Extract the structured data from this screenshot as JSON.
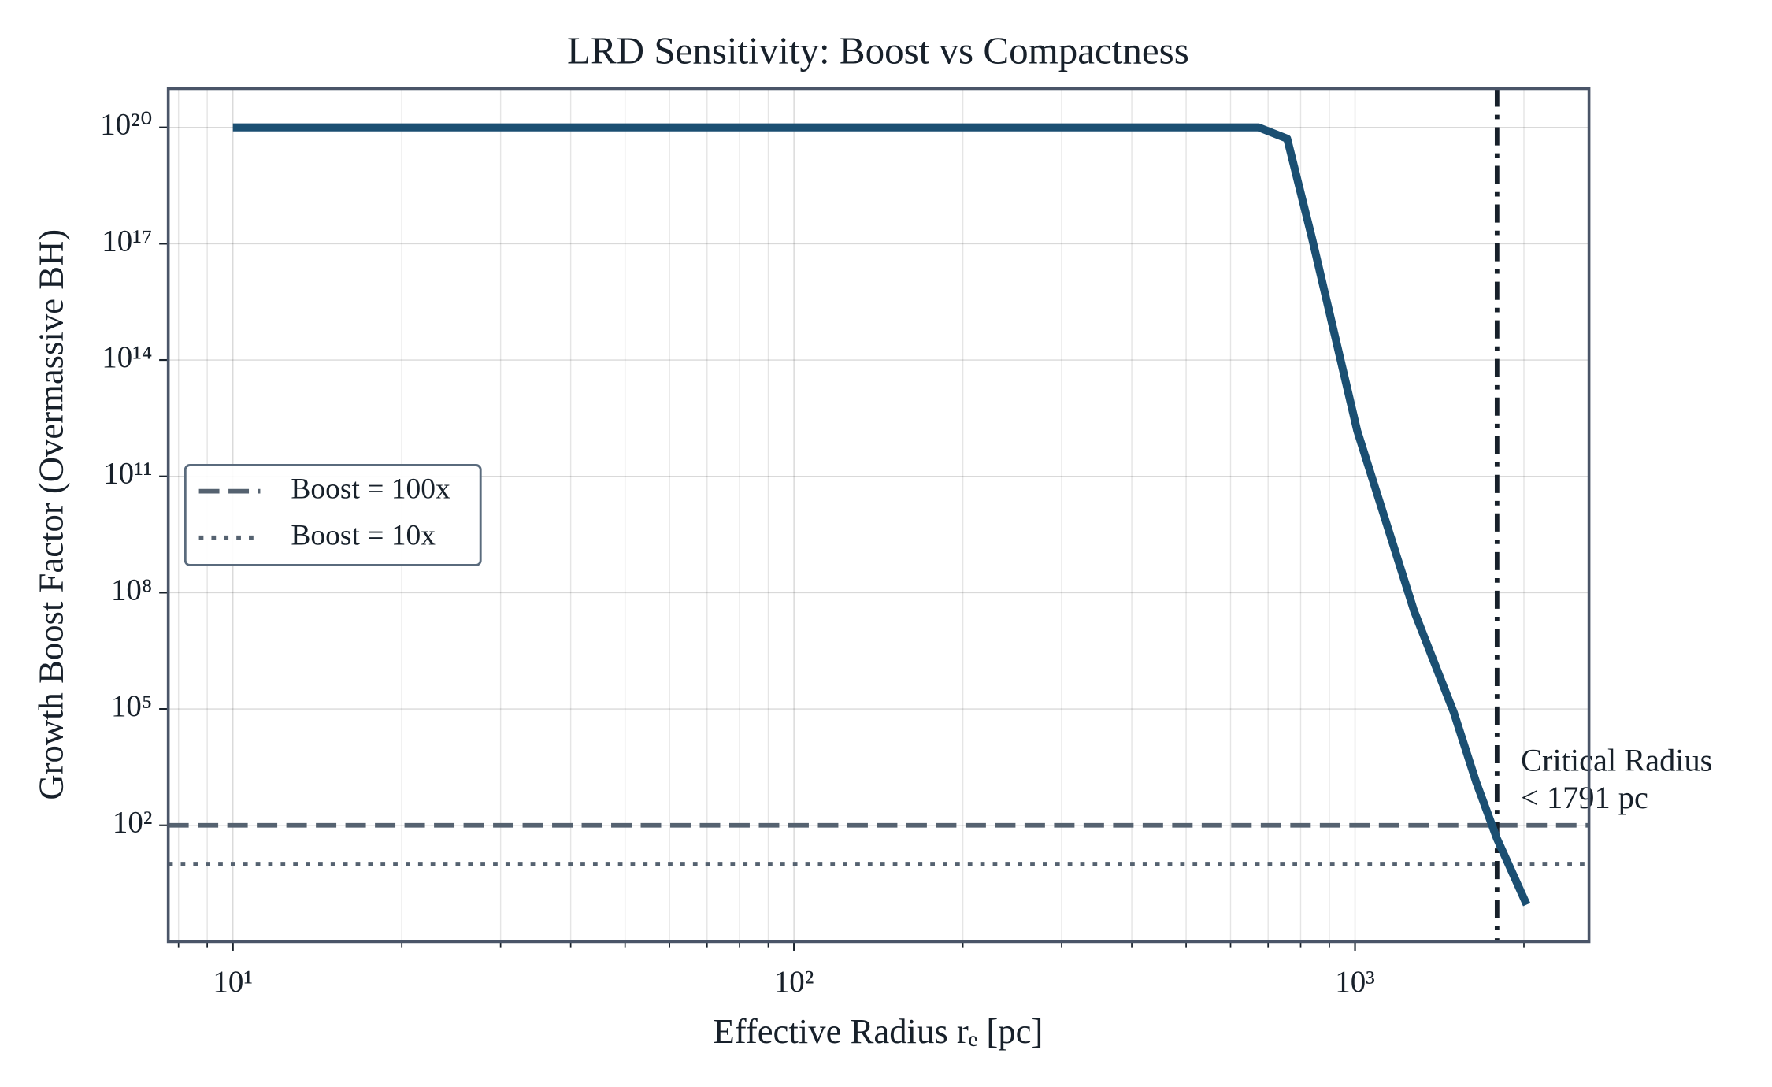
{
  "chart_data": {
    "type": "line",
    "title": "LRD Sensitivity: Boost vs Compactness",
    "xlabel": "Effective Radius rₑ [pc]",
    "ylabel": "Growth Boost Factor (Overmassive BH)",
    "xscale": "log",
    "yscale": "log",
    "grid": true,
    "xlim": [
      7.67,
      2612
    ],
    "ylim": [
      0.1,
      1e+21
    ],
    "xticks": [
      {
        "value": 10,
        "label": "10¹"
      },
      {
        "value": 100,
        "label": "10²"
      },
      {
        "value": 1000,
        "label": "10³"
      }
    ],
    "xminorticks": [
      8,
      9,
      20,
      30,
      40,
      50,
      60,
      70,
      80,
      90,
      200,
      300,
      400,
      500,
      600,
      700,
      800,
      900,
      2000
    ],
    "yticks": [
      {
        "value": 100,
        "label": "10²"
      },
      {
        "value": 100000,
        "label": "10⁵"
      },
      {
        "value": 100000000,
        "label": "10⁸"
      },
      {
        "value": 100000000000,
        "label": "10¹¹"
      },
      {
        "value": 100000000000000,
        "label": "10¹⁴"
      },
      {
        "value": 1e+17,
        "label": "10¹⁷"
      },
      {
        "value": 1e+20,
        "label": "10²⁰"
      }
    ],
    "series": [
      {
        "color": "#1b4f72",
        "x": [
          10,
          673,
          757,
          838,
          1009,
          1274,
          1500,
          1644,
          1791,
          2023
        ],
        "values": [
          1e+20,
          1e+20,
          5.1e+19,
          1.4e+17,
          1500000000000.0,
          34000000.0,
          81000,
          1300,
          45,
          0.9
        ]
      }
    ],
    "hlines": [
      {
        "name": "Boost = 100x",
        "value": 100,
        "color": "#556270",
        "style": "dashed"
      },
      {
        "name": "Boost = 10x",
        "value": 10,
        "color": "#556270",
        "style": "dotted"
      }
    ],
    "vline": {
      "value": 1791,
      "color": "#17202a",
      "style": "dashdot"
    },
    "annotation": {
      "lines": [
        "Critical Radius",
        "< 1791 pc"
      ]
    },
    "legend": "center left"
  }
}
